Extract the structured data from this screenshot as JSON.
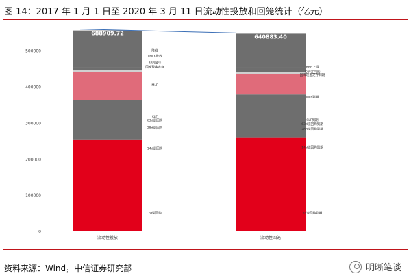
{
  "title": "图 14：2017 年 1 月 1 日至 2020 年 3 月 11 日流动性投放和回笼统计（亿元）",
  "source": "资料来源：Wind，中信证券研究部",
  "brand": {
    "name": "明晰笔谈",
    "icon": "wechat-icon"
  },
  "colors": {
    "accent": "#c0151b",
    "red": "#e2001a",
    "pink": "#e06b7a",
    "dark_gray": "#6e6e6e",
    "light_gray": "#d0d0d0"
  },
  "chart_data": {
    "type": "bar",
    "stacked": true,
    "categories": [
      "流动性投放",
      "流动性回笼"
    ],
    "ylim": [
      0,
      560000
    ],
    "yticks": [
      "0",
      "100000",
      "200000",
      "300000",
      "400000",
      "500000"
    ],
    "ytick_values": [
      0,
      100000,
      200000,
      300000,
      400000,
      500000
    ],
    "totals": [
      "688909.72",
      "640883.40"
    ],
    "grid": false,
    "bars": [
      {
        "category": "流动性投放",
        "segments": [
          {
            "value": 252000,
            "color": "#e2001a",
            "label": "7d逆回购"
          },
          {
            "value": 110000,
            "color": "#6e6e6e",
            "label": "14d逆回购"
          },
          {
            "value": 78000,
            "color": "#e06b7a",
            "label": "28d逆回购"
          },
          {
            "value": 5000,
            "color": "#d0d0d0",
            "label": "SLF"
          },
          {
            "value": 8000,
            "color": "#6e6e6e",
            "label": "63d逆回购"
          },
          {
            "value": 102000,
            "color": "#6e6e6e",
            "label": "MLF"
          }
        ],
        "segment_labels": [
          {
            "text": "7d逆回购",
            "value": 50000
          },
          {
            "text": "14d逆回购",
            "value": 230000
          },
          {
            "text": "28d逆回购",
            "value": 287000
          },
          {
            "text": "63d逆回购",
            "value": 307000
          },
          {
            "text": "SLF",
            "value": 316000
          },
          {
            "text": "MLF",
            "value": 405000
          },
          {
            "text": "国库现金定存",
            "value": 455000
          },
          {
            "text": "RRR减少",
            "value": 466000
          },
          {
            "text": "TMLF投放",
            "value": 485000
          },
          {
            "text": "降准",
            "value": 500000
          }
        ]
      },
      {
        "category": "流动性回笼",
        "segments": [
          {
            "value": 258000,
            "color": "#e2001a",
            "label": "7d逆回购到期"
          },
          {
            "value": 120000,
            "color": "#6e6e6e",
            "label": "14d逆回购到期"
          },
          {
            "value": 57000,
            "color": "#e06b7a",
            "label": "28d逆回购到期"
          },
          {
            "value": 5000,
            "color": "#d0d0d0",
            "label": "SLF到期"
          },
          {
            "value": 14000,
            "color": "#6e6e6e",
            "label": "63d逆回购到期"
          },
          {
            "value": 92000,
            "color": "#6e6e6e",
            "label": "MLF到期"
          }
        ],
        "segment_labels": [
          {
            "text": "7d逆回购到期",
            "value": 50000
          },
          {
            "text": "14d逆回购到期",
            "value": 232000
          },
          {
            "text": "28d逆回购到期",
            "value": 283000
          },
          {
            "text": "63d逆回购到期",
            "value": 297000
          },
          {
            "text": "SLF到期",
            "value": 308000
          },
          {
            "text": "MLF到期",
            "value": 372000
          },
          {
            "text": "国库现金定存到期",
            "value": 433000
          },
          {
            "text": "央行正回购",
            "value": 441000
          },
          {
            "text": "RRR上调",
            "value": 455000
          }
        ]
      }
    ],
    "connector": {
      "from": "688909.72",
      "to": "640883.40"
    }
  }
}
